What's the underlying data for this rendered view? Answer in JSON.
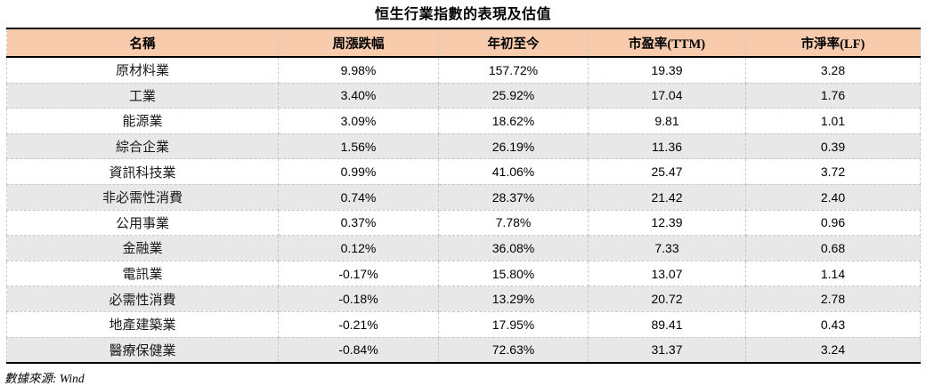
{
  "page": {
    "title": "恒生行業指數的表現及估值",
    "source_note": "數據來源: Wind"
  },
  "table": {
    "columns": [
      "名稱",
      "周漲跌幅",
      "年初至今",
      "市盈率(TTM)",
      "市淨率(LF)"
    ],
    "rows": [
      [
        "原材料業",
        "9.98%",
        "157.72%",
        "19.39",
        "3.28"
      ],
      [
        "工業",
        "3.40%",
        "25.92%",
        "17.04",
        "1.76"
      ],
      [
        "能源業",
        "3.09%",
        "18.62%",
        "9.81",
        "1.01"
      ],
      [
        "綜合企業",
        "1.56%",
        "26.19%",
        "11.36",
        "0.39"
      ],
      [
        "資訊科技業",
        "0.99%",
        "41.06%",
        "25.47",
        "3.72"
      ],
      [
        "非必需性消費",
        "0.74%",
        "28.37%",
        "21.42",
        "2.40"
      ],
      [
        "公用事業",
        "0.37%",
        "7.78%",
        "12.39",
        "0.96"
      ],
      [
        "金融業",
        "0.12%",
        "36.08%",
        "7.33",
        "0.68"
      ],
      [
        "電訊業",
        "-0.17%",
        "15.80%",
        "13.07",
        "1.14"
      ],
      [
        "必需性消費",
        "-0.18%",
        "13.29%",
        "20.72",
        "2.78"
      ],
      [
        "地產建築業",
        "-0.21%",
        "17.95%",
        "89.41",
        "0.43"
      ],
      [
        "醫療保健業",
        "-0.84%",
        "72.63%",
        "31.37",
        "3.24"
      ]
    ]
  },
  "colors": {
    "header_bg": "#F8CBAD",
    "alt_row_bg": "#E8E8E8",
    "grid_dashed": "#C9C9C9",
    "rule_solid": "#000000"
  },
  "chart_data": {
    "type": "table",
    "title": "恒生行業指數的表現及估值",
    "columns": [
      "名稱",
      "周漲跌幅",
      "年初至今",
      "市盈率(TTM)",
      "市淨率(LF)"
    ],
    "rows": [
      {
        "name": "原材料業",
        "weekly_change": "9.98%",
        "ytd": "157.72%",
        "pe_ttm": 19.39,
        "pb_lf": 3.28
      },
      {
        "name": "工業",
        "weekly_change": "3.40%",
        "ytd": "25.92%",
        "pe_ttm": 17.04,
        "pb_lf": 1.76
      },
      {
        "name": "能源業",
        "weekly_change": "3.09%",
        "ytd": "18.62%",
        "pe_ttm": 9.81,
        "pb_lf": 1.01
      },
      {
        "name": "綜合企業",
        "weekly_change": "1.56%",
        "ytd": "26.19%",
        "pe_ttm": 11.36,
        "pb_lf": 0.39
      },
      {
        "name": "資訊科技業",
        "weekly_change": "0.99%",
        "ytd": "41.06%",
        "pe_ttm": 25.47,
        "pb_lf": 3.72
      },
      {
        "name": "非必需性消費",
        "weekly_change": "0.74%",
        "ytd": "28.37%",
        "pe_ttm": 21.42,
        "pb_lf": 2.4
      },
      {
        "name": "公用事業",
        "weekly_change": "0.37%",
        "ytd": "7.78%",
        "pe_ttm": 12.39,
        "pb_lf": 0.96
      },
      {
        "name": "金融業",
        "weekly_change": "0.12%",
        "ytd": "36.08%",
        "pe_ttm": 7.33,
        "pb_lf": 0.68
      },
      {
        "name": "電訊業",
        "weekly_change": "-0.17%",
        "ytd": "15.80%",
        "pe_ttm": 13.07,
        "pb_lf": 1.14
      },
      {
        "name": "必需性消費",
        "weekly_change": "-0.18%",
        "ytd": "13.29%",
        "pe_ttm": 20.72,
        "pb_lf": 2.78
      },
      {
        "name": "地產建築業",
        "weekly_change": "-0.21%",
        "ytd": "17.95%",
        "pe_ttm": 89.41,
        "pb_lf": 0.43
      },
      {
        "name": "醫療保健業",
        "weekly_change": "-0.84%",
        "ytd": "72.63%",
        "pe_ttm": 31.37,
        "pb_lf": 3.24
      }
    ],
    "source": "數據來源: Wind"
  }
}
